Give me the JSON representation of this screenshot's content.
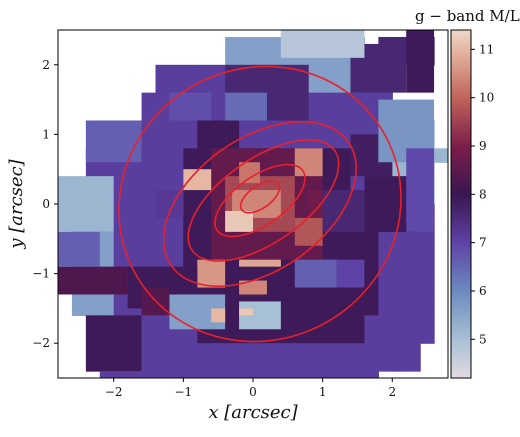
{
  "chart_data": {
    "type": "heatmap",
    "title": "",
    "xlabel": "x [arcsec]",
    "ylabel": "y [arcsec]",
    "xlim": [
      -2.8,
      2.8
    ],
    "ylim": [
      -2.5,
      2.5
    ],
    "xticks": [
      -2,
      -1,
      0,
      1,
      2
    ],
    "yticks": [
      -2,
      -1,
      0,
      1,
      2
    ],
    "xtick_labels": [
      "−2",
      "−1",
      "0",
      "1",
      "2"
    ],
    "ytick_labels": [
      "−2",
      "−1",
      "0",
      "1",
      "2"
    ],
    "colorbar": {
      "label": "g − band M/L",
      "range": [
        4.2,
        11.4
      ],
      "ticks": [
        5,
        6,
        7,
        8,
        9,
        10,
        11
      ],
      "tick_labels": [
        "5",
        "6",
        "7",
        "8",
        "9",
        "10",
        "11"
      ],
      "colormap": "twilight_shifted (lower half)",
      "stops": [
        {
          "v": 4.2,
          "color": "#e2d9e2"
        },
        {
          "v": 5.0,
          "color": "#a8c0d4"
        },
        {
          "v": 6.0,
          "color": "#6c8ac0"
        },
        {
          "v": 7.0,
          "color": "#5e42a6"
        },
        {
          "v": 8.0,
          "color": "#3a1650"
        },
        {
          "v": 9.0,
          "color": "#7c1e4a"
        },
        {
          "v": 10.0,
          "color": "#c0655a"
        },
        {
          "v": 11.0,
          "color": "#e6b8a4"
        },
        {
          "v": 11.4,
          "color": "#eed8cc"
        }
      ]
    },
    "pixel_size_arcsec": 0.2,
    "grid_x_min": -2.8,
    "grid_y_max": 2.4,
    "grid_ml": [
      "............AAAAAAAAAA.9999.",
      "............AAAAAAAAAA.9999.",
      ".......77777999999AAAA77....",
      ".......77777999999AAAA77....",
      "......777777999999777777....",
      "......777777999999777777....",
      "...777777777777777777777555.",
      "...777777777777777777777555.",
      "..777777777777777777777755555",
      "..7777777777777777777777555..",
      "..7777777777777777777777555..",
      "..7777777777777777777777555..",
      ".77777777888888888888887777..",
      ".77777777888888888888887777..",
      ".AAA77777888888888888887777..",
      ".AAA77777888888888888887777..",
      ".AAA77777888888888888887777..",
      ".AAA77777888888888888887777..",
      ".AAA77777888888888888887777..",
      ".AAA77777888888888888887777..",
      "..8888777788888888888877777..",
      "..8888777788888888888877777..",
      "..888877777777777777777777...",
      "..888877777777777777777777...",
      "...77777777777777777777.....",
      "...77777777777777777777.....",
      "........77777777777.........",
      "........77777777777........."
    ],
    "patches": [
      {
        "x0": -1.0,
        "y0": 0.8,
        "x1": 1.4,
        "y1": -1.0,
        "v": 7.9
      },
      {
        "x0": -0.6,
        "y0": 0.8,
        "x1": 1.0,
        "y1": -0.8,
        "v": 8.6
      },
      {
        "x0": -0.4,
        "y0": 0.4,
        "x1": 0.6,
        "y1": -0.4,
        "v": 9.6
      },
      {
        "x0": -0.3,
        "y0": 0.2,
        "x1": 0.4,
        "y1": -0.2,
        "v": 10.4
      },
      {
        "x0": -0.4,
        "y0": -0.1,
        "x1": 0.0,
        "y1": -0.4,
        "v": 11.2
      },
      {
        "x0": -0.2,
        "y0": 0.6,
        "x1": 0.1,
        "y1": 0.3,
        "v": 10.2
      },
      {
        "x0": -1.0,
        "y0": 0.5,
        "x1": -0.6,
        "y1": 0.2,
        "v": 11.0
      },
      {
        "x0": 0.6,
        "y0": -0.2,
        "x1": 1.0,
        "y1": -0.6,
        "v": 9.8
      },
      {
        "x0": -0.8,
        "y0": -0.8,
        "x1": -0.4,
        "y1": -1.2,
        "v": 10.6
      },
      {
        "x0": -0.2,
        "y0": -0.8,
        "x1": 0.4,
        "y1": -0.9,
        "v": 10.8
      },
      {
        "x0": -1.8,
        "y0": -0.9,
        "x1": -0.8,
        "y1": -1.5,
        "v": 7.9
      },
      {
        "x0": -2.8,
        "y0": -0.9,
        "x1": -1.8,
        "y1": -1.3,
        "v": 8.3
      },
      {
        "x0": 1.4,
        "y0": 1.0,
        "x1": 2.0,
        "y1": 0.4,
        "v": 7.8
      },
      {
        "x0": 1.6,
        "y0": 0.4,
        "x1": 2.4,
        "y1": -0.4,
        "v": 7.9
      },
      {
        "x0": 1.8,
        "y0": 1.5,
        "x1": 2.6,
        "y1": 0.6,
        "v": 5.8
      },
      {
        "x0": 1.4,
        "y0": 2.3,
        "x1": 2.2,
        "y1": 1.6,
        "v": 7.6
      },
      {
        "x0": 0.4,
        "y0": 2.5,
        "x1": 1.6,
        "y1": 2.1,
        "v": 4.8
      },
      {
        "x0": 2.2,
        "y0": 2.5,
        "x1": 2.6,
        "y1": 1.6,
        "v": 7.9
      },
      {
        "x0": -2.8,
        "y0": 0.4,
        "x1": -2.0,
        "y1": -0.4,
        "v": 5.2
      },
      {
        "x0": -2.8,
        "y0": -0.4,
        "x1": -2.2,
        "y1": -0.9,
        "v": 6.6
      },
      {
        "x0": -2.4,
        "y0": 1.2,
        "x1": -1.6,
        "y1": 0.6,
        "v": 6.6
      },
      {
        "x0": -1.2,
        "y0": -1.3,
        "x1": -0.4,
        "y1": -1.8,
        "v": 5.6
      },
      {
        "x0": -0.2,
        "y0": -1.4,
        "x1": 0.4,
        "y1": -1.8,
        "v": 5.0
      },
      {
        "x0": -0.2,
        "y0": -1.5,
        "x1": 0.0,
        "y1": -1.6,
        "v": 11.2
      },
      {
        "x0": -0.6,
        "y0": -1.5,
        "x1": -0.4,
        "y1": -1.7,
        "v": 11.0
      },
      {
        "x0": -1.6,
        "y0": -1.2,
        "x1": -1.2,
        "y1": -1.6,
        "v": 8.4
      },
      {
        "x0": -0.2,
        "y0": -1.1,
        "x1": 0.2,
        "y1": -1.3,
        "v": 10.4
      },
      {
        "x0": 0.8,
        "y0": 0.2,
        "x1": 1.2,
        "y1": -0.2,
        "v": 8.8
      },
      {
        "x0": -1.4,
        "y0": 0.2,
        "x1": -1.0,
        "y1": -0.2,
        "v": 7.2
      },
      {
        "x0": -0.8,
        "y0": 1.2,
        "x1": -0.2,
        "y1": 0.8,
        "v": 7.9
      },
      {
        "x0": 0.6,
        "y0": 0.8,
        "x1": 1.0,
        "y1": 0.4,
        "v": 10.4
      },
      {
        "x0": 1.0,
        "y0": 0.2,
        "x1": 1.6,
        "y1": -0.4,
        "v": 7.6
      },
      {
        "x0": -1.2,
        "y0": 1.6,
        "x1": -0.6,
        "y1": 1.2,
        "v": 6.8
      },
      {
        "x0": -0.4,
        "y0": 1.6,
        "x1": 0.2,
        "y1": 1.2,
        "v": 6.4
      },
      {
        "x0": 0.6,
        "y0": -0.8,
        "x1": 1.2,
        "y1": -1.2,
        "v": 6.6
      },
      {
        "x0": 1.2,
        "y0": -0.8,
        "x1": 1.6,
        "y1": -1.2,
        "v": 7.0
      },
      {
        "x0": 2.2,
        "y0": 0.8,
        "x1": 2.6,
        "y1": -0.4,
        "v": 6.9
      }
    ],
    "contours": [
      {
        "cx": 0.1,
        "cy": 0.0,
        "a": 2.05,
        "b": 1.95,
        "angle_deg": 30
      },
      {
        "cx": 0.1,
        "cy": 0.0,
        "a": 1.55,
        "b": 0.95,
        "angle_deg": 35
      },
      {
        "cx": 0.15,
        "cy": 0.05,
        "a": 1.25,
        "b": 0.6,
        "angle_deg": 35
      },
      {
        "cx": 0.1,
        "cy": 0.05,
        "a": 0.75,
        "b": 0.35,
        "angle_deg": 35
      },
      {
        "cx": 0.1,
        "cy": 0.1,
        "a": 0.32,
        "b": 0.16,
        "angle_deg": 35
      }
    ],
    "contour_color": "#e8202a"
  }
}
